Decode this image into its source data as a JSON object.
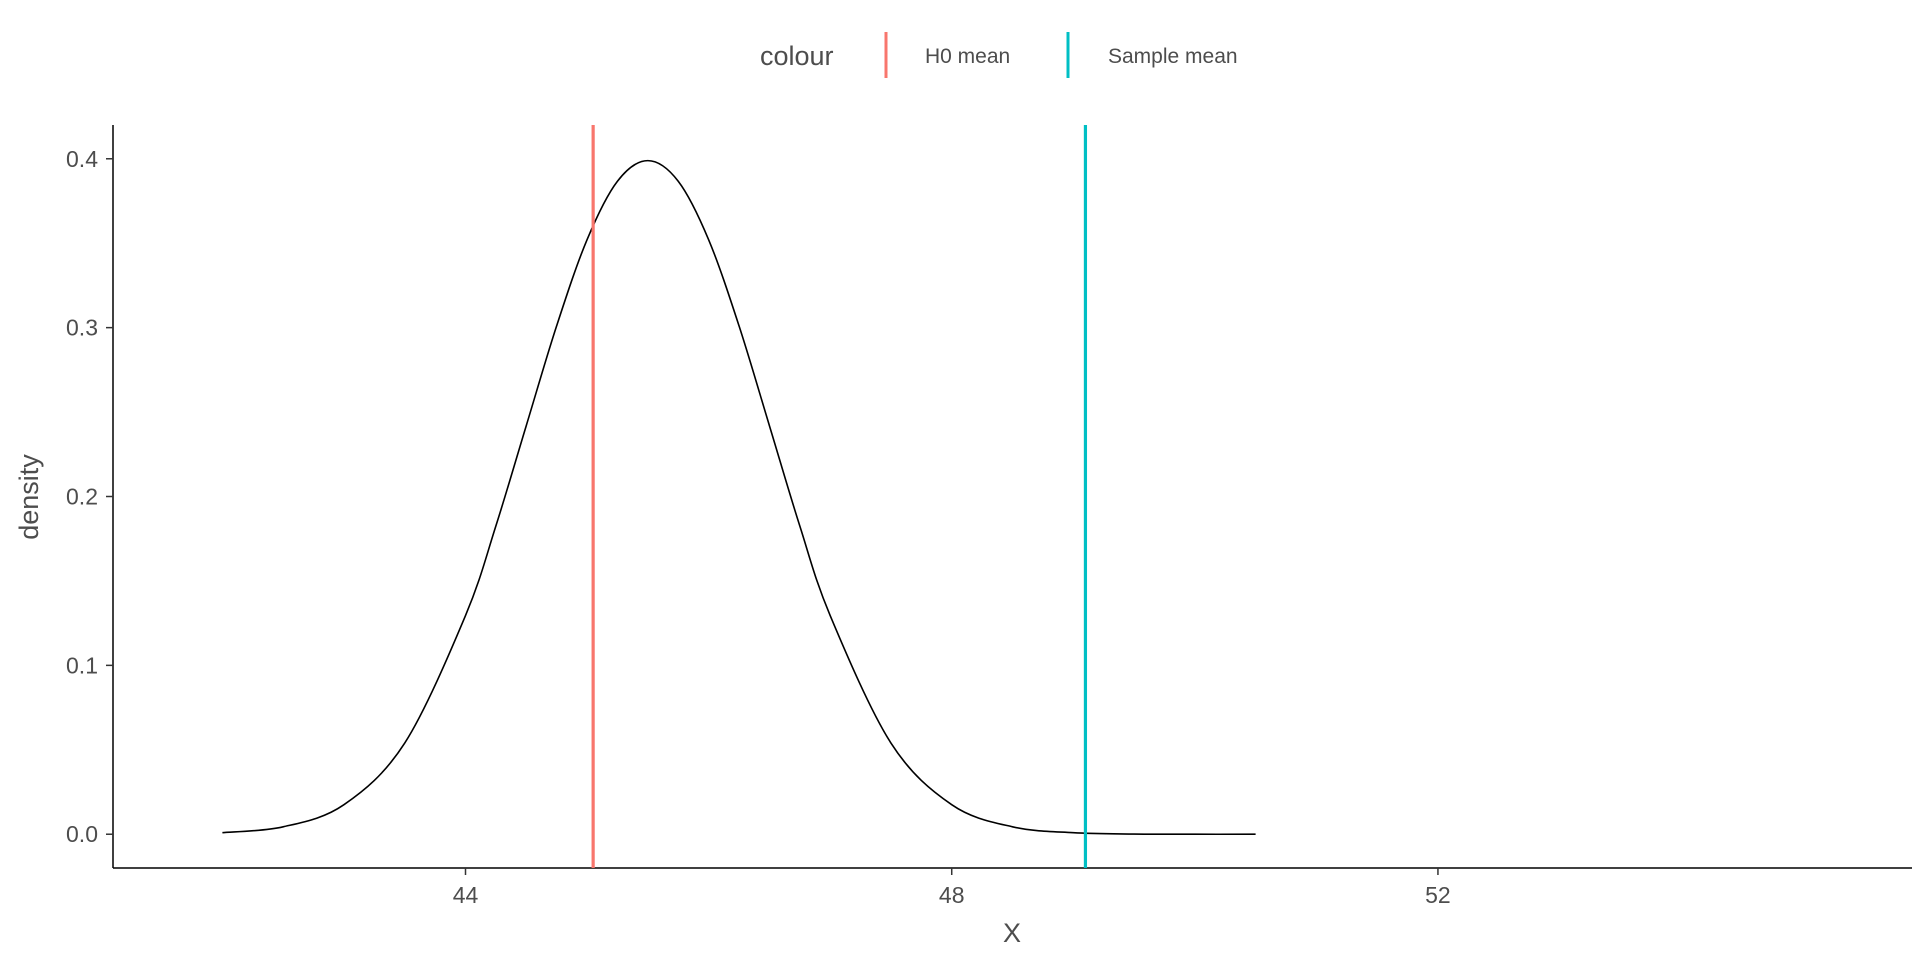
{
  "chart_data": {
    "type": "line",
    "title": "",
    "xlabel": "X",
    "ylabel": "density",
    "xlim": [
      41.1,
      55.9
    ],
    "ylim": [
      -0.02,
      0.42
    ],
    "x_ticks": [
      44,
      48,
      52
    ],
    "x_tick_labels": [
      "44",
      "48",
      "52"
    ],
    "y_ticks": [
      0.0,
      0.1,
      0.2,
      0.3,
      0.4
    ],
    "y_tick_labels": [
      "0.0",
      "0.1",
      "0.2",
      "0.3",
      "0.4"
    ],
    "grid": false,
    "legend": {
      "position": "top",
      "title": "colour",
      "entries": [
        {
          "label": "H0 mean",
          "color": "#F8766D"
        },
        {
          "label": "Sample mean",
          "color": "#00BFC4"
        }
      ]
    },
    "series": [
      {
        "kind": "density-curve",
        "color": "#000000",
        "x": [
          42,
          42.5,
          43,
          43.5,
          44,
          44.25,
          44.5,
          44.75,
          45,
          45.25,
          45.5,
          45.75,
          46,
          46.25,
          46.5,
          46.75,
          47,
          47.5,
          48,
          48.5,
          49,
          49.5,
          50,
          50.5
        ],
        "y": [
          0.0009,
          0.0044,
          0.0175,
          0.054,
          0.1295,
          0.1826,
          0.242,
          0.3011,
          0.3521,
          0.3867,
          0.3989,
          0.3867,
          0.3521,
          0.3011,
          0.242,
          0.1826,
          0.1295,
          0.054,
          0.0175,
          0.0044,
          0.0009,
          0.0001,
          0.0,
          0.0
        ]
      }
    ],
    "vlines": [
      {
        "name": "H0 mean",
        "x": 45.05,
        "color": "#F8766D"
      },
      {
        "name": "Sample mean",
        "x": 49.1,
        "color": "#00BFC4"
      }
    ]
  }
}
